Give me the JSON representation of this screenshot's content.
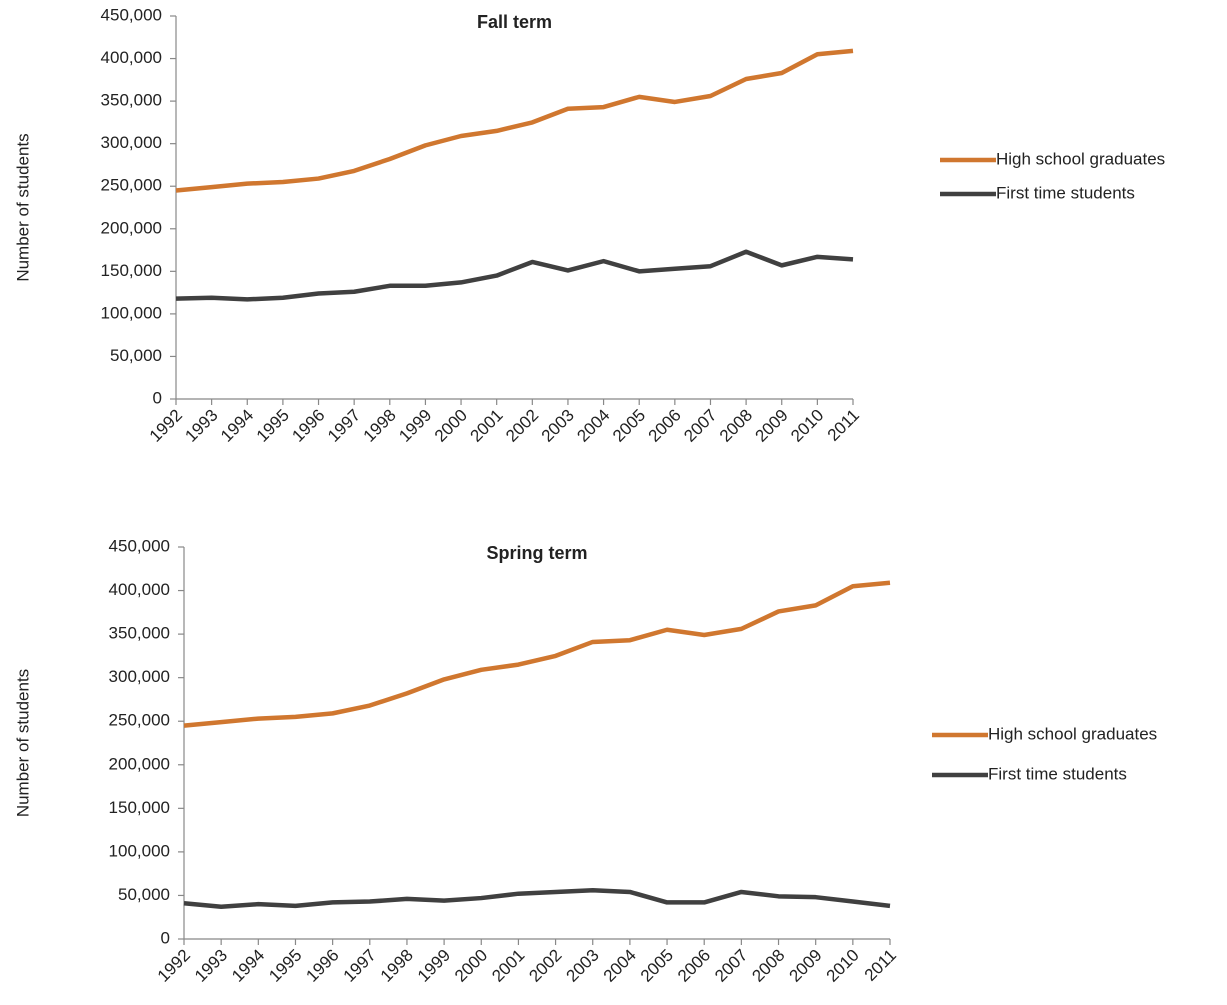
{
  "chart_data": [
    {
      "type": "line",
      "title": "Fall term",
      "y_label": "Number of students",
      "categories": [
        "1992",
        "1993",
        "1994",
        "1995",
        "1996",
        "1997",
        "1998",
        "1999",
        "2000",
        "2001",
        "2002",
        "2003",
        "2004",
        "2005",
        "2006",
        "2007",
        "2008",
        "2009",
        "2010",
        "2011"
      ],
      "series": [
        {
          "name": "High school graduates",
          "color": "#d0772f",
          "values": [
            245000,
            249000,
            253000,
            255000,
            259000,
            268000,
            282000,
            298000,
            309000,
            315000,
            325000,
            341000,
            343000,
            355000,
            349000,
            356000,
            376000,
            383000,
            405000,
            409000
          ]
        },
        {
          "name": "First time students",
          "color": "#404040",
          "values": [
            118000,
            119000,
            117000,
            119000,
            124000,
            126000,
            133000,
            133000,
            137000,
            145000,
            161000,
            151000,
            162000,
            150000,
            153000,
            156000,
            173000,
            157000,
            167000,
            164000
          ]
        }
      ],
      "ylim": [
        0,
        450000
      ],
      "yticks": [
        0,
        {
          "value": 50000,
          "label": "50,000"
        },
        {
          "value": 100000,
          "label": "100,000"
        },
        {
          "value": 150000,
          "label": "150,000"
        },
        {
          "value": 200000,
          "label": "200,000"
        },
        {
          "value": 250000,
          "label": "250,000"
        },
        {
          "value": 300000,
          "label": "300,000"
        },
        {
          "value": 350000,
          "label": "350,000"
        },
        {
          "value": 400000,
          "label": "400,000"
        },
        {
          "value": 450000,
          "label": "450,000"
        }
      ],
      "grid": false,
      "legend": "right"
    },
    {
      "type": "line",
      "title": "Spring term",
      "y_label": "Number of students",
      "categories": [
        "1992",
        "1993",
        "1994",
        "1995",
        "1996",
        "1997",
        "1998",
        "1999",
        "2000",
        "2001",
        "2002",
        "2003",
        "2004",
        "2005",
        "2006",
        "2007",
        "2008",
        "2009",
        "2010",
        "2011"
      ],
      "series": [
        {
          "name": "High school graduates",
          "color": "#d0772f",
          "values": [
            245000,
            249000,
            253000,
            255000,
            259000,
            268000,
            282000,
            298000,
            309000,
            315000,
            325000,
            341000,
            343000,
            355000,
            349000,
            356000,
            376000,
            383000,
            405000,
            409000
          ]
        },
        {
          "name": "First time students",
          "color": "#404040",
          "values": [
            41000,
            37000,
            40000,
            38000,
            42000,
            43000,
            46000,
            44000,
            47000,
            52000,
            54000,
            56000,
            54000,
            42000,
            42000,
            54000,
            49000,
            48000,
            43000,
            38000
          ]
        }
      ],
      "ylim": [
        0,
        450000
      ],
      "yticks": [
        0,
        {
          "value": 50000,
          "label": "50,000"
        },
        {
          "value": 100000,
          "label": "100,000"
        },
        {
          "value": 150000,
          "label": "150,000"
        },
        {
          "value": 200000,
          "label": "200,000"
        },
        {
          "value": 250000,
          "label": "250,000"
        },
        {
          "value": 300000,
          "label": "300,000"
        },
        {
          "value": 350000,
          "label": "350,000"
        },
        {
          "value": 400000,
          "label": "400,000"
        },
        {
          "value": 450000,
          "label": "450,000"
        }
      ],
      "grid": false,
      "legend": "right"
    }
  ]
}
